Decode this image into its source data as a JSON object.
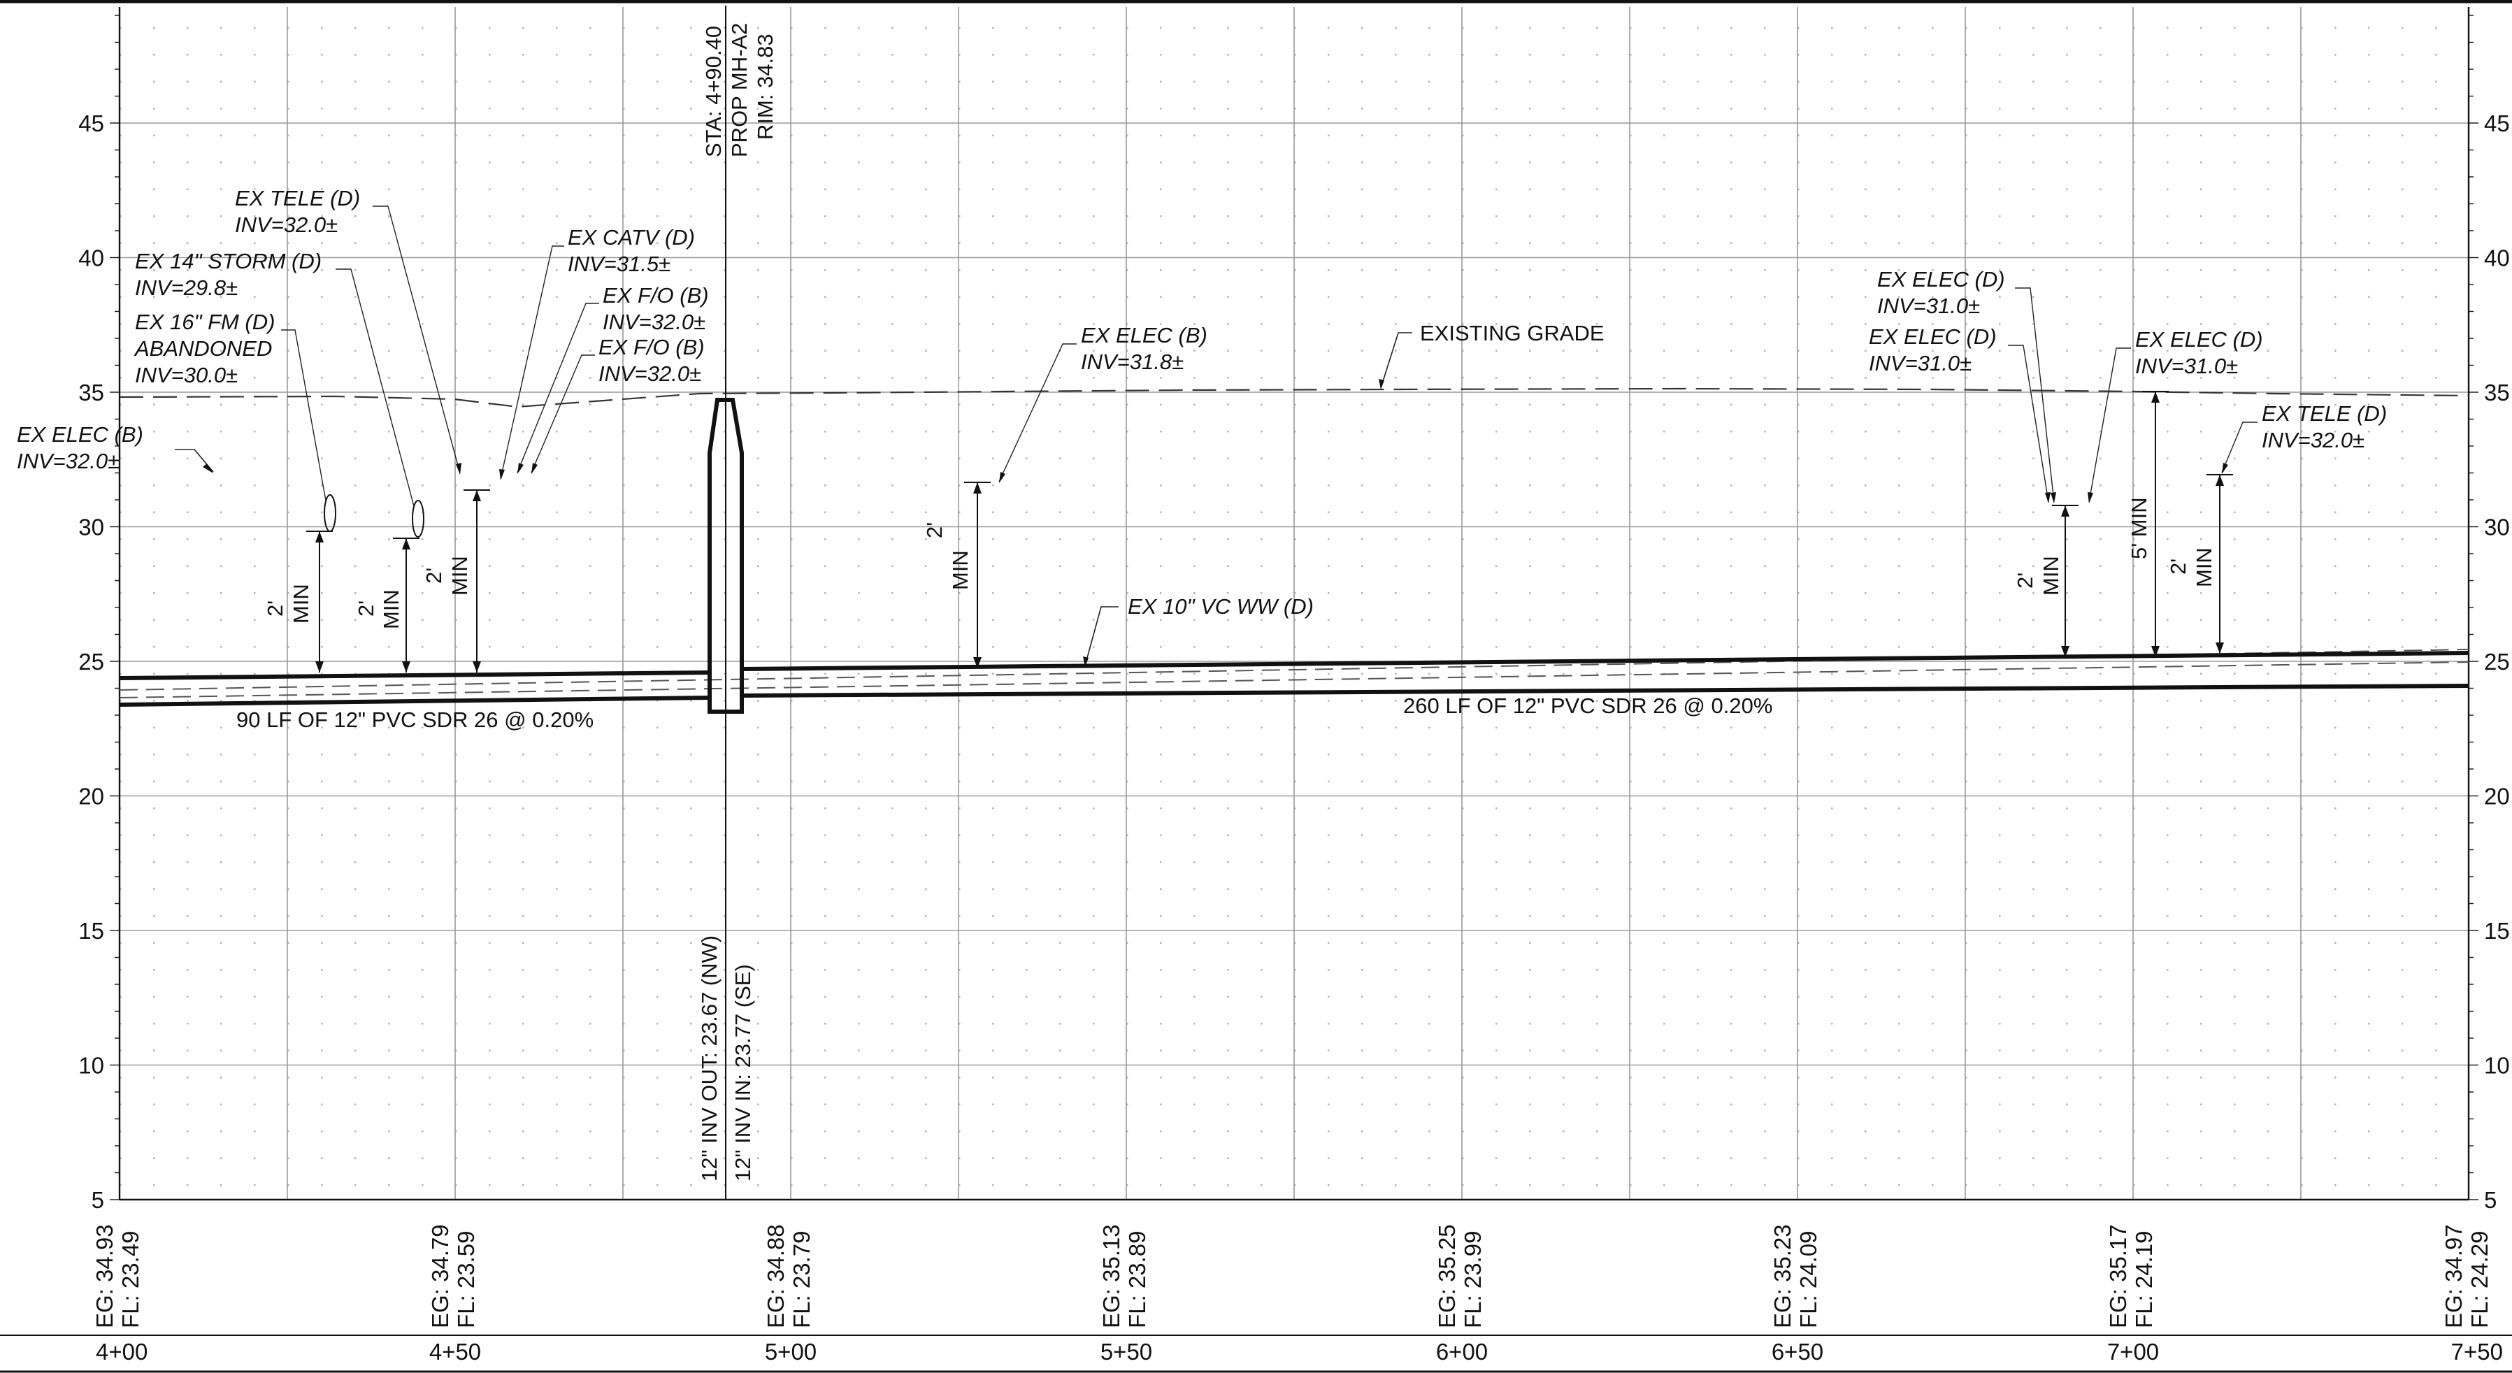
{
  "axis": {
    "elevation_ticks": [
      "5",
      "10",
      "15",
      "20",
      "25",
      "30",
      "35",
      "40",
      "45"
    ],
    "stations": [
      "4+00",
      "4+50",
      "5+00",
      "5+50",
      "6+00",
      "6+50",
      "7+00",
      "7+50"
    ]
  },
  "station_data": [
    {
      "eg": "EG: 34.93",
      "fl": "FL: 23.49"
    },
    {
      "eg": "EG: 34.79",
      "fl": "FL: 23.59"
    },
    {
      "eg": "EG: 34.88",
      "fl": "FL: 23.79"
    },
    {
      "eg": "EG: 35.13",
      "fl": "FL: 23.89"
    },
    {
      "eg": "EG: 35.25",
      "fl": "FL: 23.99"
    },
    {
      "eg": "EG: 35.23",
      "fl": "FL: 24.09"
    },
    {
      "eg": "EG: 35.17",
      "fl": "FL: 24.19"
    },
    {
      "eg": "EG: 34.97",
      "fl": "FL: 24.29"
    }
  ],
  "manhole": {
    "sta": "STA: 4+90.40",
    "name": "PROP MH-A2",
    "rim": "RIM: 34.83",
    "inv_out": "12\" INV OUT: 23.67 (NW)",
    "inv_in": "12\" INV IN: 23.77 (SE)"
  },
  "pipes": {
    "left_label": "90 LF OF 12\" PVC SDR 26 @ 0.20%",
    "right_label": "260 LF OF 12\" PVC SDR 26 @ 0.20%",
    "existing_ww": "EX 10\" VC WW (D)",
    "existing_grade": "EXISTING GRADE"
  },
  "utilities": {
    "elec_b_far": {
      "name": "EX ELEC (B)",
      "inv": "INV=32.0±"
    },
    "tele_left": {
      "name": "EX TELE (D)",
      "inv": "INV=32.0±"
    },
    "storm": {
      "name": "EX 14\" STORM (D)",
      "inv": "INV=29.8±"
    },
    "fm": {
      "name": "EX 16\" FM (D)",
      "note": "ABANDONED",
      "inv": "INV=30.0±"
    },
    "catv": {
      "name": "EX CATV (D)",
      "inv": "INV=31.5±"
    },
    "fo_1": {
      "name": "EX F/O (B)",
      "inv": "INV=32.0±"
    },
    "fo_2": {
      "name": "EX F/O (B)",
      "inv": "INV=32.0±"
    },
    "elec_b_mid": {
      "name": "EX ELEC (B)",
      "inv": "INV=31.8±"
    },
    "elec_d_1": {
      "name": "EX ELEC (D)",
      "inv": "INV=31.0±"
    },
    "elec_d_2": {
      "name": "EX ELEC (D)",
      "inv": "INV=31.0±"
    },
    "elec_d_3": {
      "name": "EX ELEC (D)",
      "inv": "INV=31.0±"
    },
    "tele_right": {
      "name": "EX TELE (D)",
      "inv": "INV=32.0±"
    }
  },
  "clearances": {
    "two_ft": "2'",
    "min": "MIN",
    "five_ft_min": "5' MIN"
  },
  "colors": {
    "ink": "#111111",
    "grid": "#9a9a9a",
    "dots": "#b5b5b5"
  }
}
